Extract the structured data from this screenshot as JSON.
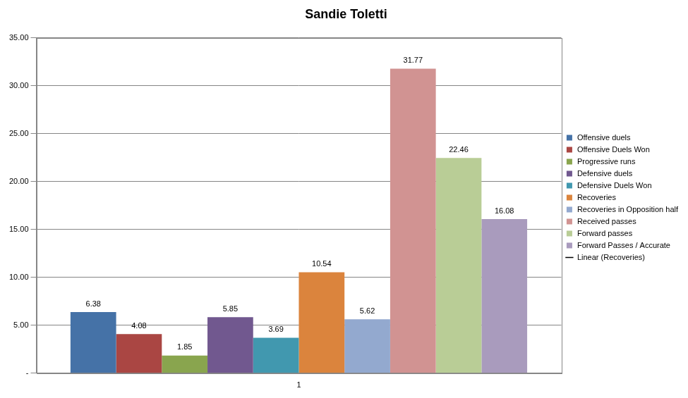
{
  "chart_data": {
    "type": "bar",
    "title": "Sandie Toletti",
    "categories": [
      "1"
    ],
    "series": [
      {
        "name": "Offensive duels",
        "color": "#4572A7",
        "values": [
          6.38
        ]
      },
      {
        "name": "Offensive Duels Won",
        "color": "#AA4643",
        "values": [
          4.08
        ]
      },
      {
        "name": "Progressive runs",
        "color": "#89A54E",
        "values": [
          1.85
        ]
      },
      {
        "name": "Defensive duels",
        "color": "#71588F",
        "values": [
          5.85
        ]
      },
      {
        "name": "Defensive Duels Won",
        "color": "#4198AF",
        "values": [
          3.69
        ]
      },
      {
        "name": "Recoveries",
        "color": "#DB843D",
        "values": [
          10.54
        ]
      },
      {
        "name": "Recoveries in Opposition half",
        "color": "#93A9CF",
        "values": [
          5.62
        ]
      },
      {
        "name": "Received passes",
        "color": "#D19392",
        "values": [
          31.77
        ]
      },
      {
        "name": "Forward passes",
        "color": "#B9CD96",
        "values": [
          22.46
        ]
      },
      {
        "name": "Forward Passes / Accurate",
        "color": "#A99BBD",
        "values": [
          16.08
        ]
      },
      {
        "name": "Linear (Recoveries)",
        "type": "line",
        "color": "#000000",
        "values": [
          null
        ]
      }
    ],
    "ylim": [
      0,
      35
    ],
    "yticks": [
      {
        "value": 0,
        "label": "-"
      },
      {
        "value": 5,
        "label": "5.00"
      },
      {
        "value": 10,
        "label": "10.00"
      },
      {
        "value": 15,
        "label": "15.00"
      },
      {
        "value": 20,
        "label": "20.00"
      },
      {
        "value": 25,
        "label": "25.00"
      },
      {
        "value": 30,
        "label": "30.00"
      },
      {
        "value": 35,
        "label": "35.00"
      }
    ],
    "grid": true,
    "legend": "right",
    "data_labels": true
  }
}
